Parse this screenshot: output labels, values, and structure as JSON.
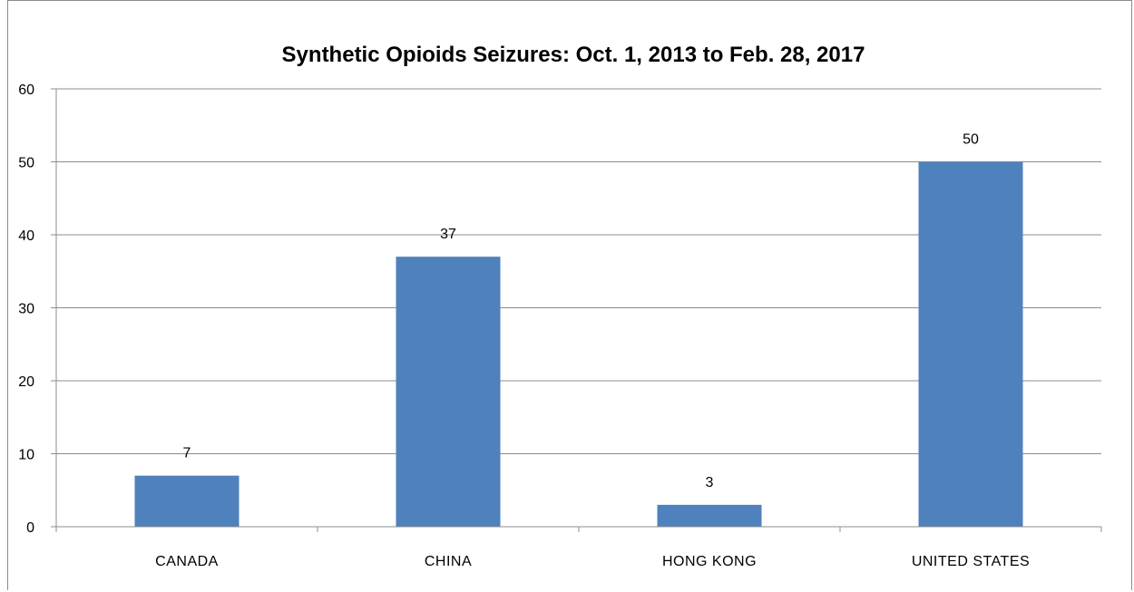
{
  "chart_data": {
    "type": "bar",
    "title": "Synthetic Opioids Seizures:  Oct. 1, 2013 to Feb. 28, 2017",
    "xlabel": "",
    "ylabel": "",
    "categories": [
      "CANADA",
      "CHINA",
      "HONG KONG",
      "UNITED STATES"
    ],
    "values": [
      7,
      37,
      3,
      50
    ],
    "data_labels": [
      "7",
      "37",
      "3",
      "50"
    ],
    "ylim": [
      0,
      60
    ],
    "yticks": [
      0,
      10,
      20,
      30,
      40,
      50,
      60
    ],
    "grid": true,
    "legend": "none",
    "bar_color": "#4f81bd",
    "grid_color": "#8c8c8c"
  }
}
